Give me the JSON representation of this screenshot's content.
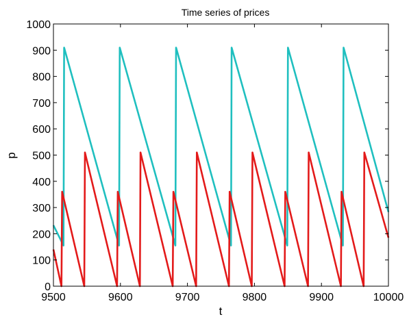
{
  "chart_data": {
    "type": "line",
    "title": "Time series of prices",
    "xlabel": "t",
    "ylabel": "p",
    "xlim": [
      9500,
      10000
    ],
    "ylim": [
      0,
      1000
    ],
    "xticks": [
      9500,
      9600,
      9700,
      9800,
      9900,
      10000
    ],
    "yticks": [
      0,
      100,
      200,
      300,
      400,
      500,
      600,
      700,
      800,
      900,
      1000
    ],
    "grid": false,
    "legend": "none",
    "series": [
      {
        "color": "#1fbfbf",
        "points": [
          [
            9500,
            232
          ],
          [
            9515,
            155
          ],
          [
            9516,
            910
          ],
          [
            9598,
            155
          ],
          [
            9599,
            910
          ],
          [
            9682,
            155
          ],
          [
            9683,
            910
          ],
          [
            9765,
            155
          ],
          [
            9766,
            910
          ],
          [
            9849,
            155
          ],
          [
            9850,
            910
          ],
          [
            9932,
            155
          ],
          [
            9933,
            910
          ],
          [
            10000,
            283
          ]
        ]
      },
      {
        "color": "#e31a1a",
        "points": [
          [
            9500,
            140
          ],
          [
            9512,
            0
          ],
          [
            9513,
            360
          ],
          [
            9546,
            0
          ],
          [
            9547,
            510
          ],
          [
            9595,
            0
          ],
          [
            9596,
            360
          ],
          [
            9629,
            0
          ],
          [
            9630,
            510
          ],
          [
            9678,
            0
          ],
          [
            9679,
            360
          ],
          [
            9713,
            0
          ],
          [
            9714,
            510
          ],
          [
            9762,
            0
          ],
          [
            9763,
            360
          ],
          [
            9796,
            0
          ],
          [
            9797,
            510
          ],
          [
            9845,
            0
          ],
          [
            9846,
            360
          ],
          [
            9880,
            0
          ],
          [
            9881,
            510
          ],
          [
            9929,
            0
          ],
          [
            9930,
            360
          ],
          [
            9963,
            0
          ],
          [
            9964,
            510
          ],
          [
            10000,
            185
          ]
        ]
      }
    ]
  }
}
